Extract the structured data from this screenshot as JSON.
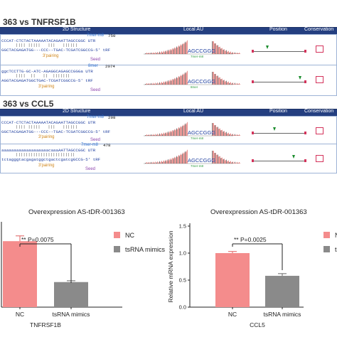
{
  "panel_top": {
    "headers": {
      "structure": "2D Structure",
      "local_au": "Local AU",
      "position": "Position",
      "conservation": "Conservation"
    },
    "sections": [
      {
        "title": "363 vs TNFRSF1B",
        "sites": [
          {
            "mer_label": "7mer-m8",
            "number": "750",
            "line1": "CCCAT-CTCTACTAAAAATACAGAATTAGCCGGC ",
            "line1_suffix": "UTR",
            "line2": "GGCTACGAGATGG---CCC--TGAC-TCGATCGGCCG-5'",
            "line2_suffix": "tRF",
            "pairing_label": "3'pairing",
            "seed_label": "Seed",
            "au_seq": "AGCCGGG",
            "au_caption": "7mer-m8"
          },
          {
            "mer_label": "8mer",
            "number": "2074",
            "line1": "ggcTCCTTG-GC-ATC-AGAGGCAGAGCCGGGa ",
            "line1_suffix": "UTR",
            "line2": "AGGTACGAGATGGCTGAC-TCGATCGGCCG-5'",
            "line2_suffix": "tRF",
            "pairing_label": "3'pairing",
            "seed_label": "Seed",
            "au_seq": "AGCCGGG",
            "au_caption": "8mer"
          }
        ]
      },
      {
        "title": "363 vs CCL5",
        "sites": [
          {
            "mer_label": "7mer-m8",
            "number": "298",
            "line1": "CCCAT-CTCTACTAAAAATACAGAATTAGCCGGC ",
            "line1_suffix": "UTR",
            "line2": "GGCTACGAGATGG---CCC--TGAC-TCGATCGGCCG-5'",
            "line2_suffix": "tRF",
            "pairing_label": "3'pairing",
            "seed_label": "Seed",
            "au_seq": "AGCCGGG",
            "au_caption": "7mer-m8"
          },
          {
            "mer_label": "7mer-m8",
            "number": "478",
            "line1": "aaaaaaaaaaaaaaaaaaacaaaAATTAGCCGGC ",
            "line1_suffix": "UTR",
            "line2": "tctagggtacgagatggctgactcgatcgGCCG-5'",
            "line2_suffix": "tRF",
            "pairing_label": "3'pairing",
            "seed_label": "Seed",
            "au_seq": "AGCCGGG",
            "au_caption": "7mer-m8"
          }
        ]
      }
    ]
  },
  "chart_data": [
    {
      "type": "bar",
      "title": "Overexpression AS-tDR-001363",
      "xlabel": "TNFRSF1B",
      "ylabel": "",
      "categories": [
        "NC",
        "tsRNA mimics"
      ],
      "values": [
        1.0,
        0.38
      ],
      "errors": [
        0.08,
        0.02
      ],
      "ylim": [
        0,
        1.25
      ],
      "significance": "** P=0.0075",
      "legend": [
        "NC",
        "tsRNA mimics"
      ],
      "colors": [
        "#f48c8c",
        "#8a8a8a"
      ]
    },
    {
      "type": "bar",
      "title": "Overexpression AS-tDR-001363",
      "xlabel": "CCL5",
      "ylabel": "Relative mRNA expression",
      "categories": [
        "NC",
        "tsRNA mimics"
      ],
      "values": [
        1.0,
        0.58
      ],
      "errors": [
        0.03,
        0.04
      ],
      "ylim": [
        0,
        1.5
      ],
      "yticks": [
        "0.0",
        "0.5",
        "1.0",
        "1.5"
      ],
      "significance": "** P=0.0025",
      "legend": [
        "NC",
        "tsRNA mimics"
      ],
      "colors": [
        "#f48c8c",
        "#8a8a8a"
      ]
    }
  ]
}
